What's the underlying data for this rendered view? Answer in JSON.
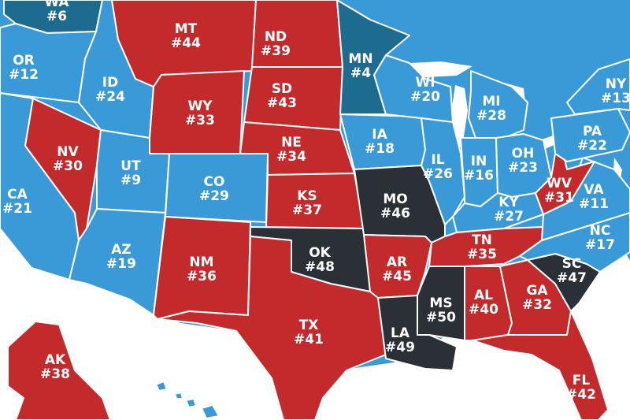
{
  "colors": {
    "red": "#c32a2c",
    "light_blue": "#3a9ad8",
    "dark_teal": "#1d6b8e",
    "charcoal": "#2b2f36",
    "water": "#ffffff"
  },
  "states": [
    {
      "abbr": "WA",
      "rank": "#6",
      "color": "dark_teal"
    },
    {
      "abbr": "OR",
      "rank": "#12",
      "color": "light_blue"
    },
    {
      "abbr": "CA",
      "rank": "#21",
      "color": "light_blue"
    },
    {
      "abbr": "ID",
      "rank": "#24",
      "color": "light_blue"
    },
    {
      "abbr": "NV",
      "rank": "#30",
      "color": "red"
    },
    {
      "abbr": "UT",
      "rank": "#9",
      "color": "light_blue"
    },
    {
      "abbr": "AZ",
      "rank": "#19",
      "color": "light_blue"
    },
    {
      "abbr": "MT",
      "rank": "#44",
      "color": "red"
    },
    {
      "abbr": "WY",
      "rank": "#33",
      "color": "red"
    },
    {
      "abbr": "CO",
      "rank": "#29",
      "color": "light_blue"
    },
    {
      "abbr": "NM",
      "rank": "#36",
      "color": "red"
    },
    {
      "abbr": "ND",
      "rank": "#39",
      "color": "red"
    },
    {
      "abbr": "SD",
      "rank": "#43",
      "color": "red"
    },
    {
      "abbr": "NE",
      "rank": "#34",
      "color": "red"
    },
    {
      "abbr": "KS",
      "rank": "#37",
      "color": "red"
    },
    {
      "abbr": "OK",
      "rank": "#48",
      "color": "charcoal"
    },
    {
      "abbr": "TX",
      "rank": "#41",
      "color": "red"
    },
    {
      "abbr": "MN",
      "rank": "#4",
      "color": "dark_teal"
    },
    {
      "abbr": "IA",
      "rank": "#18",
      "color": "light_blue"
    },
    {
      "abbr": "MO",
      "rank": "#46",
      "color": "charcoal"
    },
    {
      "abbr": "AR",
      "rank": "#45",
      "color": "red"
    },
    {
      "abbr": "LA",
      "rank": "#49",
      "color": "charcoal"
    },
    {
      "abbr": "WI",
      "rank": "#20",
      "color": "light_blue"
    },
    {
      "abbr": "IL",
      "rank": "#26",
      "color": "light_blue"
    },
    {
      "abbr": "MS",
      "rank": "#50",
      "color": "charcoal"
    },
    {
      "abbr": "MI",
      "rank": "#28",
      "color": "light_blue"
    },
    {
      "abbr": "IN",
      "rank": "#16",
      "color": "light_blue"
    },
    {
      "abbr": "OH",
      "rank": "#23",
      "color": "light_blue"
    },
    {
      "abbr": "KY",
      "rank": "#27",
      "color": "light_blue"
    },
    {
      "abbr": "TN",
      "rank": "#35",
      "color": "red"
    },
    {
      "abbr": "AL",
      "rank": "#40",
      "color": "red"
    },
    {
      "abbr": "GA",
      "rank": "#32",
      "color": "red"
    },
    {
      "abbr": "FL",
      "rank": "#42",
      "color": "red"
    },
    {
      "abbr": "SC",
      "rank": "#47",
      "color": "charcoal"
    },
    {
      "abbr": "NC",
      "rank": "#17",
      "color": "light_blue"
    },
    {
      "abbr": "VA",
      "rank": "#11",
      "color": "light_blue"
    },
    {
      "abbr": "WV",
      "rank": "#31",
      "color": "red"
    },
    {
      "abbr": "PA",
      "rank": "#22",
      "color": "light_blue"
    },
    {
      "abbr": "NY",
      "rank": "#13",
      "color": "light_blue"
    },
    {
      "abbr": "AK",
      "rank": "#38",
      "color": "red"
    },
    {
      "abbr": "HI",
      "rank": "",
      "color": "light_blue"
    }
  ]
}
